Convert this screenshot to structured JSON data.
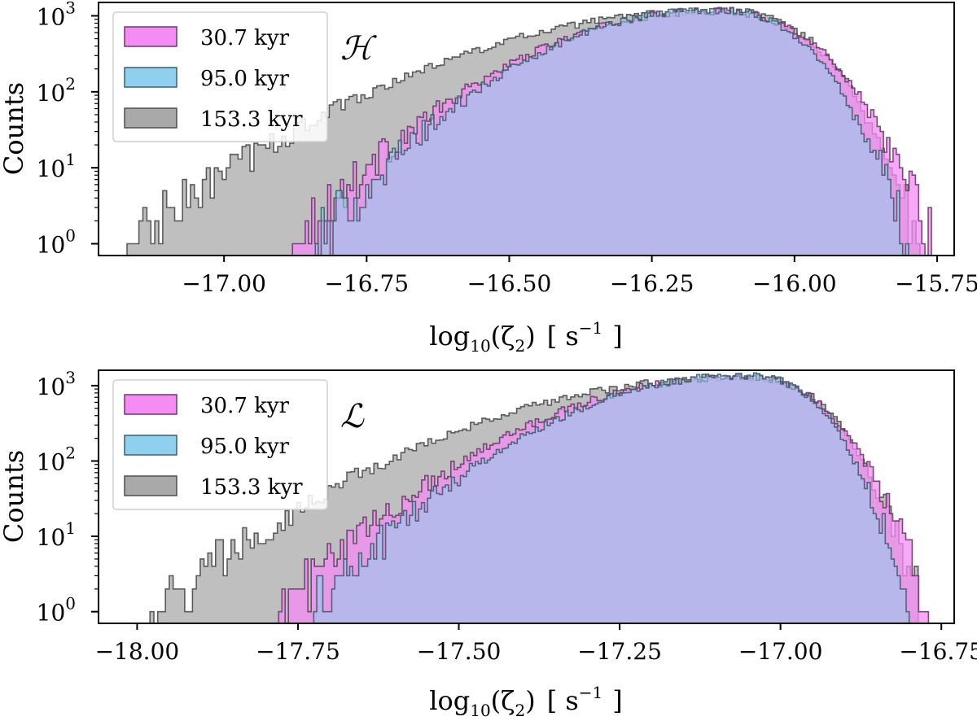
{
  "chart_data": [
    {
      "type": "histogram",
      "panel_label": "ℋ",
      "xlabel": "log10(ζ2) [ s−1 ]",
      "xlabel_parts": {
        "log": "log",
        "sub": "10",
        "open": "(ζ",
        "sub2": "2",
        "close": ")",
        "unit_open": "[ s",
        "unit_sup": "−1",
        "unit_close": "]"
      },
      "ylabel": "Counts",
      "yscale": "log",
      "xlim": [
        -17.22,
        -15.72
      ],
      "ylim": [
        0.7,
        1500
      ],
      "xticks": [
        -17.0,
        -16.75,
        -16.5,
        -16.25,
        -16.0,
        -15.75
      ],
      "xtick_labels": [
        "−17.00",
        "−16.75",
        "−16.50",
        "−16.25",
        "−16.00",
        "−15.75"
      ],
      "yticks": [
        1,
        10,
        100,
        1000
      ],
      "ytick_labels": [
        {
          "base": "10",
          "exp": "0"
        },
        {
          "base": "10",
          "exp": "1"
        },
        {
          "base": "10",
          "exp": "2"
        },
        {
          "base": "10",
          "exp": "3"
        }
      ],
      "legend": {
        "placement": "top-left"
      },
      "series": [
        {
          "name": "30.7 kyr",
          "color": "#f48cf4",
          "edge": "#6b3a6b",
          "range": [
            -16.88,
            -15.76
          ],
          "peak_x": -16.15,
          "peak": 1150
        },
        {
          "name": "95.0 kyr",
          "color": "#8fd0ee",
          "edge": "#3c5f6e",
          "range": [
            -16.84,
            -15.8
          ],
          "peak_x": -16.15,
          "peak": 1200
        },
        {
          "name": "153.3 kyr",
          "color": "#a9a9a9",
          "edge": "#4d4d4d",
          "range": [
            -17.17,
            -15.78
          ],
          "peak_x": -16.13,
          "peak": 1150
        }
      ]
    },
    {
      "type": "histogram",
      "panel_label": "ℒ",
      "xlabel": "log10(ζ2) [ s−1 ]",
      "xlabel_parts": {
        "log": "log",
        "sub": "10",
        "open": "(ζ",
        "sub2": "2",
        "close": ")",
        "unit_open": "[ s",
        "unit_sup": "−1",
        "unit_close": "]"
      },
      "ylabel": "Counts",
      "yscale": "log",
      "xlim": [
        -18.06,
        -16.73
      ],
      "ylim": [
        0.7,
        1600
      ],
      "xticks": [
        -18.0,
        -17.75,
        -17.5,
        -17.25,
        -17.0,
        -16.75
      ],
      "xtick_labels": [
        "−18.00",
        "−17.75",
        "−17.50",
        "−17.25",
        "−17.00",
        "−16.75"
      ],
      "yticks": [
        1,
        10,
        100,
        1000
      ],
      "ytick_labels": [
        {
          "base": "10",
          "exp": "0"
        },
        {
          "base": "10",
          "exp": "1"
        },
        {
          "base": "10",
          "exp": "2"
        },
        {
          "base": "10",
          "exp": "3"
        }
      ],
      "legend": {
        "placement": "top-left"
      },
      "series": [
        {
          "name": "30.7 kyr",
          "color": "#f48cf4",
          "edge": "#6b3a6b",
          "range": [
            -17.78,
            -16.77
          ],
          "peak_x": -17.07,
          "peak": 1300
        },
        {
          "name": "95.0 kyr",
          "color": "#8fd0ee",
          "edge": "#3c5f6e",
          "range": [
            -17.73,
            -16.8
          ],
          "peak_x": -17.06,
          "peak": 1350
        },
        {
          "name": "153.3 kyr",
          "color": "#a9a9a9",
          "edge": "#4d4d4d",
          "range": [
            -17.98,
            -16.78
          ],
          "peak_x": -17.06,
          "peak": 1300
        }
      ]
    }
  ]
}
